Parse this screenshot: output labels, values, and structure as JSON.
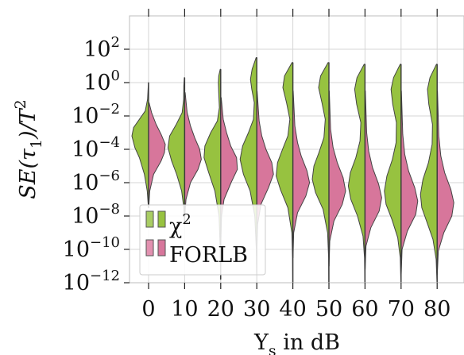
{
  "chart_data": {
    "type": "violin",
    "title": "",
    "xlabel": "Υ",
    "xlabel_sub": "s",
    "xlabel_suffix": " in dB",
    "ylabel": "SE(τ",
    "ylabel_sub": "1",
    "ylabel_suffix": ")/T",
    "ylabel_sup": "2",
    "y_scale": "log",
    "ylim_exp": [
      -12,
      4
    ],
    "y_tick_base": "10",
    "y_tick_exponents": [
      -12,
      -10,
      -8,
      -6,
      -4,
      -2,
      0,
      2
    ],
    "y_tick_exponent_labels": [
      "−12",
      "−10",
      "−8",
      "−6",
      "−4",
      "−2",
      "0",
      "2"
    ],
    "categories": [
      "0",
      "10",
      "20",
      "30",
      "40",
      "50",
      "60",
      "70",
      "80"
    ],
    "grid": true,
    "legend_position": "lower-left",
    "series": [
      {
        "name": "χ",
        "name_sup": "2",
        "side": "left",
        "color": "#97c240",
        "legend_color": "#a9cd64",
        "violins": [
          {
            "range": [
              -7.5,
              0
            ],
            "profile": [
              [
                -7.5,
                0.01
              ],
              [
                -6.5,
                0.08
              ],
              [
                -5.5,
                0.25
              ],
              [
                -4.5,
                0.55
              ],
              [
                -3.9,
                0.82
              ],
              [
                -3.2,
                1.0
              ],
              [
                -2.7,
                0.9
              ],
              [
                -2.2,
                0.55
              ],
              [
                -1.7,
                0.2
              ],
              [
                -1,
                0.06
              ],
              [
                0,
                0.01
              ]
            ]
          },
          {
            "range": [
              -8.5,
              0.3
            ],
            "profile": [
              [
                -8.5,
                0.01
              ],
              [
                -7.5,
                0.05
              ],
              [
                -6.5,
                0.18
              ],
              [
                -5.5,
                0.48
              ],
              [
                -4.7,
                0.78
              ],
              [
                -3.9,
                1.0
              ],
              [
                -3.2,
                0.9
              ],
              [
                -2.5,
                0.5
              ],
              [
                -1.8,
                0.15
              ],
              [
                -1,
                0.06
              ],
              [
                -0.2,
                0.05
              ],
              [
                0.3,
                0.02
              ]
            ]
          },
          {
            "range": [
              -11.8,
              0.8
            ],
            "profile": [
              [
                -11.8,
                0.01
              ],
              [
                -10,
                0.03
              ],
              [
                -8,
                0.1
              ],
              [
                -6.5,
                0.35
              ],
              [
                -5.4,
                0.72
              ],
              [
                -4.5,
                1.0
              ],
              [
                -3.8,
                0.95
              ],
              [
                -3,
                0.6
              ],
              [
                -2.3,
                0.2
              ],
              [
                -1.5,
                0.08
              ],
              [
                -0.6,
                0.12
              ],
              [
                0,
                0.14
              ],
              [
                0.4,
                0.12
              ],
              [
                0.8,
                0.03
              ]
            ]
          },
          {
            "range": [
              -11.5,
              1.5
            ],
            "profile": [
              [
                -11.5,
                0.01
              ],
              [
                -10,
                0.03
              ],
              [
                -8,
                0.12
              ],
              [
                -6.5,
                0.4
              ],
              [
                -5.5,
                0.8
              ],
              [
                -4.6,
                1.0
              ],
              [
                -3.8,
                0.85
              ],
              [
                -3,
                0.5
              ],
              [
                -2.2,
                0.2
              ],
              [
                -1.2,
                0.15
              ],
              [
                -0.4,
                0.3
              ],
              [
                0.2,
                0.38
              ],
              [
                0.8,
                0.28
              ],
              [
                1.5,
                0.04
              ]
            ]
          },
          {
            "range": [
              -12,
              1.2
            ],
            "profile": [
              [
                -12,
                0.01
              ],
              [
                -10.5,
                0.02
              ],
              [
                -9,
                0.06
              ],
              [
                -7.5,
                0.3
              ],
              [
                -6.4,
                0.75
              ],
              [
                -5.6,
                1.0
              ],
              [
                -4.8,
                0.92
              ],
              [
                -4,
                0.62
              ],
              [
                -3.2,
                0.3
              ],
              [
                -2.2,
                0.18
              ],
              [
                -1.2,
                0.38
              ],
              [
                -0.3,
                0.6
              ],
              [
                0.4,
                0.5
              ],
              [
                1.2,
                0.05
              ]
            ]
          },
          {
            "range": [
              -12,
              1.2
            ],
            "profile": [
              [
                -12,
                0.01
              ],
              [
                -10.5,
                0.02
              ],
              [
                -9,
                0.08
              ],
              [
                -7.6,
                0.35
              ],
              [
                -6.6,
                0.8
              ],
              [
                -5.8,
                1.0
              ],
              [
                -5,
                0.9
              ],
              [
                -4.2,
                0.6
              ],
              [
                -3.3,
                0.3
              ],
              [
                -2.2,
                0.22
              ],
              [
                -1.2,
                0.42
              ],
              [
                -0.3,
                0.62
              ],
              [
                0.4,
                0.5
              ],
              [
                1.2,
                0.05
              ]
            ]
          },
          {
            "range": [
              -12,
              1.1
            ],
            "profile": [
              [
                -12,
                0.01
              ],
              [
                -10.5,
                0.03
              ],
              [
                -9.2,
                0.12
              ],
              [
                -8,
                0.45
              ],
              [
                -7,
                0.85
              ],
              [
                -6.2,
                1.0
              ],
              [
                -5.4,
                0.88
              ],
              [
                -4.5,
                0.55
              ],
              [
                -3.5,
                0.3
              ],
              [
                -2.4,
                0.25
              ],
              [
                -1.3,
                0.5
              ],
              [
                -0.4,
                0.62
              ],
              [
                0.3,
                0.48
              ],
              [
                1.1,
                0.05
              ]
            ]
          },
          {
            "range": [
              -12,
              1.1
            ],
            "profile": [
              [
                -12,
                0.01
              ],
              [
                -10.5,
                0.05
              ],
              [
                -9.3,
                0.2
              ],
              [
                -8.2,
                0.55
              ],
              [
                -7.3,
                0.9
              ],
              [
                -6.5,
                1.0
              ],
              [
                -5.6,
                0.85
              ],
              [
                -4.6,
                0.52
              ],
              [
                -3.6,
                0.3
              ],
              [
                -2.4,
                0.28
              ],
              [
                -1.3,
                0.5
              ],
              [
                -0.4,
                0.6
              ],
              [
                0.3,
                0.45
              ],
              [
                1.1,
                0.05
              ]
            ]
          },
          {
            "range": [
              -12,
              1.1
            ],
            "profile": [
              [
                -12,
                0.01
              ],
              [
                -10.6,
                0.06
              ],
              [
                -9.4,
                0.25
              ],
              [
                -8.4,
                0.6
              ],
              [
                -7.5,
                0.92
              ],
              [
                -6.7,
                1.0
              ],
              [
                -5.8,
                0.85
              ],
              [
                -4.8,
                0.52
              ],
              [
                -3.7,
                0.3
              ],
              [
                -2.5,
                0.28
              ],
              [
                -1.3,
                0.5
              ],
              [
                -0.4,
                0.58
              ],
              [
                0.3,
                0.43
              ],
              [
                1.1,
                0.04
              ]
            ]
          }
        ]
      },
      {
        "name": "FORLB",
        "side": "right",
        "color": "#d7769b",
        "legend_color": "#e291b0",
        "violins": [
          {
            "range": [
              -7.5,
              -1.2
            ],
            "profile": [
              [
                -7.5,
                0.01
              ],
              [
                -6.5,
                0.07
              ],
              [
                -5.5,
                0.3
              ],
              [
                -4.7,
                0.75
              ],
              [
                -4.2,
                0.95
              ],
              [
                -3.7,
                1.0
              ],
              [
                -3.1,
                0.75
              ],
              [
                -2.5,
                0.45
              ],
              [
                -1.8,
                0.18
              ],
              [
                -1.2,
                0.03
              ]
            ]
          },
          {
            "range": [
              -8,
              -0.6
            ],
            "profile": [
              [
                -8,
                0.01
              ],
              [
                -7,
                0.08
              ],
              [
                -6,
                0.35
              ],
              [
                -5.2,
                0.8
              ],
              [
                -4.6,
                1.0
              ],
              [
                -4,
                0.9
              ],
              [
                -3.3,
                0.6
              ],
              [
                -2.6,
                0.35
              ],
              [
                -1.8,
                0.15
              ],
              [
                -0.6,
                0.03
              ]
            ]
          },
          {
            "range": [
              -9.5,
              -0.9
            ],
            "profile": [
              [
                -9.5,
                0.01
              ],
              [
                -8,
                0.05
              ],
              [
                -7,
                0.2
              ],
              [
                -6,
                0.62
              ],
              [
                -5.2,
                1.0
              ],
              [
                -4.5,
                0.95
              ],
              [
                -3.8,
                0.6
              ],
              [
                -3,
                0.35
              ],
              [
                -2.2,
                0.15
              ],
              [
                -0.9,
                0.03
              ]
            ]
          },
          {
            "range": [
              -10,
              -0.5
            ],
            "profile": [
              [
                -10,
                0.01
              ],
              [
                -8.5,
                0.05
              ],
              [
                -7.3,
                0.25
              ],
              [
                -6.3,
                0.7
              ],
              [
                -5.5,
                1.0
              ],
              [
                -4.8,
                0.9
              ],
              [
                -4,
                0.55
              ],
              [
                -3.2,
                0.3
              ],
              [
                -2.3,
                0.14
              ],
              [
                -0.5,
                0.02
              ]
            ]
          },
          {
            "range": [
              -10.5,
              -0.5
            ],
            "profile": [
              [
                -10.5,
                0.01
              ],
              [
                -9,
                0.05
              ],
              [
                -7.8,
                0.28
              ],
              [
                -6.8,
                0.78
              ],
              [
                -6,
                1.0
              ],
              [
                -5.3,
                0.85
              ],
              [
                -4.4,
                0.5
              ],
              [
                -3.6,
                0.28
              ],
              [
                -2.6,
                0.12
              ],
              [
                -0.5,
                0.02
              ]
            ]
          },
          {
            "range": [
              -11,
              -0.5
            ],
            "profile": [
              [
                -11,
                0.01
              ],
              [
                -9.5,
                0.05
              ],
              [
                -8.3,
                0.3
              ],
              [
                -7.3,
                0.8
              ],
              [
                -6.5,
                1.0
              ],
              [
                -5.7,
                0.85
              ],
              [
                -4.8,
                0.5
              ],
              [
                -3.9,
                0.25
              ],
              [
                -2.8,
                0.1
              ],
              [
                -0.5,
                0.02
              ]
            ]
          },
          {
            "range": [
              -11.2,
              -0.5
            ],
            "profile": [
              [
                -11.2,
                0.01
              ],
              [
                -9.8,
                0.06
              ],
              [
                -8.7,
                0.35
              ],
              [
                -7.7,
                0.85
              ],
              [
                -6.9,
                1.0
              ],
              [
                -6.1,
                0.82
              ],
              [
                -5.1,
                0.45
              ],
              [
                -4.1,
                0.22
              ],
              [
                -3,
                0.1
              ],
              [
                -0.5,
                0.02
              ]
            ]
          },
          {
            "range": [
              -11.5,
              -0.5
            ],
            "profile": [
              [
                -11.5,
                0.01
              ],
              [
                -10,
                0.06
              ],
              [
                -8.9,
                0.38
              ],
              [
                -7.9,
                0.88
              ],
              [
                -7.1,
                1.0
              ],
              [
                -6.3,
                0.82
              ],
              [
                -5.3,
                0.45
              ],
              [
                -4.3,
                0.22
              ],
              [
                -3.1,
                0.1
              ],
              [
                -0.5,
                0.02
              ]
            ]
          },
          {
            "range": [
              -11.5,
              -0.5
            ],
            "profile": [
              [
                -11.5,
                0.01
              ],
              [
                -10.1,
                0.07
              ],
              [
                -9,
                0.4
              ],
              [
                -8,
                0.88
              ],
              [
                -7.2,
                1.0
              ],
              [
                -6.4,
                0.82
              ],
              [
                -5.4,
                0.45
              ],
              [
                -4.4,
                0.22
              ],
              [
                -3.2,
                0.1
              ],
              [
                -0.5,
                0.02
              ]
            ]
          }
        ]
      }
    ]
  }
}
